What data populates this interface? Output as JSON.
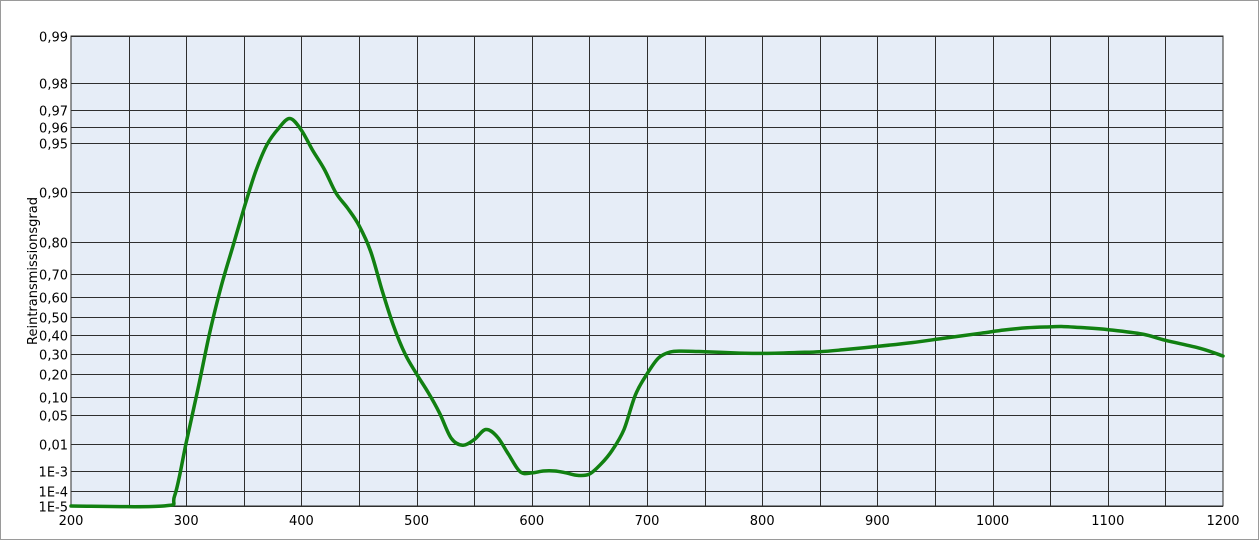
{
  "chart_data": {
    "type": "line",
    "title": "",
    "xlabel": "",
    "ylabel": "Reintransmissionsgrad",
    "xlim": [
      200,
      1200
    ],
    "x_ticks": [
      200,
      300,
      400,
      500,
      600,
      700,
      800,
      900,
      1000,
      1100,
      1200
    ],
    "x_tick_labels": [
      "200",
      "300",
      "400",
      "500",
      "600",
      "700",
      "800",
      "900",
      "1000",
      "1100",
      "1200"
    ],
    "y_ticks": [
      {
        "label": "1E-5",
        "value": 1e-05
      },
      {
        "label": "1E-4",
        "value": 0.0001
      },
      {
        "label": "1E-3",
        "value": 0.001
      },
      {
        "label": "0,01",
        "value": 0.01
      },
      {
        "label": "0,05",
        "value": 0.05
      },
      {
        "label": "0,10",
        "value": 0.1
      },
      {
        "label": "0,20",
        "value": 0.2
      },
      {
        "label": "0,30",
        "value": 0.3
      },
      {
        "label": "0,40",
        "value": 0.4
      },
      {
        "label": "0,50",
        "value": 0.5
      },
      {
        "label": "0,60",
        "value": 0.6
      },
      {
        "label": "0,70",
        "value": 0.7
      },
      {
        "label": "0,80",
        "value": 0.8
      },
      {
        "label": "0,90",
        "value": 0.9
      },
      {
        "label": "0,95",
        "value": 0.95
      },
      {
        "label": "0,96",
        "value": 0.96
      },
      {
        "label": "0,97",
        "value": 0.97
      },
      {
        "label": "0,98",
        "value": 0.98
      },
      {
        "label": "0,99",
        "value": 0.99
      }
    ],
    "grid": true,
    "background_color": "#e6edf7",
    "grid_color": "#2e2e2e",
    "series": [
      {
        "color": "#118011",
        "points": [
          [
            200,
            1e-05
          ],
          [
            280,
            1e-05
          ],
          [
            290,
            5e-05
          ],
          [
            300,
            0.012
          ],
          [
            310,
            0.13
          ],
          [
            320,
            0.4
          ],
          [
            330,
            0.64
          ],
          [
            340,
            0.78
          ],
          [
            350,
            0.866
          ],
          [
            360,
            0.92
          ],
          [
            370,
            0.948
          ],
          [
            380,
            0.959
          ],
          [
            390,
            0.965
          ],
          [
            400,
            0.958
          ],
          [
            410,
            0.942
          ],
          [
            420,
            0.923
          ],
          [
            430,
            0.898
          ],
          [
            440,
            0.868
          ],
          [
            450,
            0.833
          ],
          [
            460,
            0.772
          ],
          [
            470,
            0.63
          ],
          [
            480,
            0.45
          ],
          [
            490,
            0.3
          ],
          [
            500,
            0.2
          ],
          [
            510,
            0.12
          ],
          [
            520,
            0.055
          ],
          [
            530,
            0.018
          ],
          [
            540,
            0.009
          ],
          [
            550,
            0.016
          ],
          [
            560,
            0.03
          ],
          [
            570,
            0.02
          ],
          [
            580,
            0.004
          ],
          [
            590,
            0.0009
          ],
          [
            600,
            0.0008
          ],
          [
            610,
            0.001
          ],
          [
            620,
            0.001
          ],
          [
            630,
            0.0008
          ],
          [
            640,
            0.0006
          ],
          [
            650,
            0.0007
          ],
          [
            660,
            0.0018
          ],
          [
            670,
            0.006
          ],
          [
            680,
            0.03
          ],
          [
            690,
            0.11
          ],
          [
            700,
            0.2
          ],
          [
            710,
            0.28
          ],
          [
            720,
            0.31
          ],
          [
            730,
            0.315
          ],
          [
            750,
            0.312
          ],
          [
            780,
            0.305
          ],
          [
            800,
            0.303
          ],
          [
            830,
            0.308
          ],
          [
            850,
            0.312
          ],
          [
            870,
            0.322
          ],
          [
            900,
            0.34
          ],
          [
            930,
            0.36
          ],
          [
            960,
            0.385
          ],
          [
            990,
            0.41
          ],
          [
            1010,
            0.428
          ],
          [
            1030,
            0.44
          ],
          [
            1050,
            0.445
          ],
          [
            1060,
            0.447
          ],
          [
            1080,
            0.44
          ],
          [
            1100,
            0.43
          ],
          [
            1130,
            0.405
          ],
          [
            1150,
            0.372
          ],
          [
            1180,
            0.33
          ],
          [
            1200,
            0.29
          ]
        ]
      }
    ]
  }
}
